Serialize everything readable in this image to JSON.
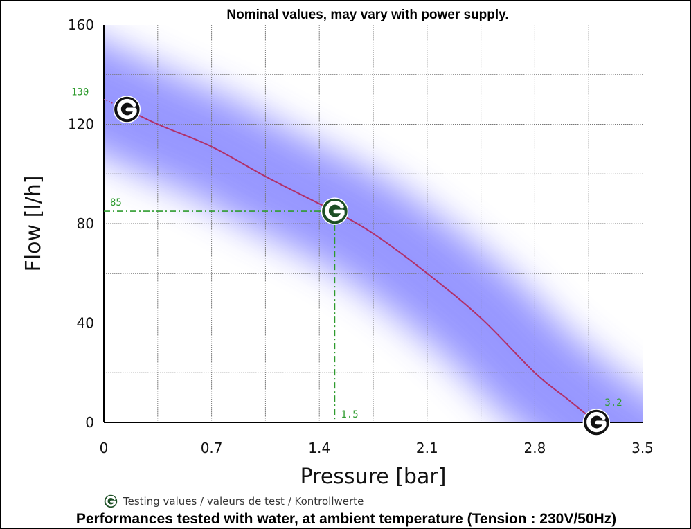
{
  "chart_data": {
    "type": "line",
    "title": "Nominal values, may vary with power supply.",
    "footnote": "Performances tested with water, at ambient temperature (Tension : 230V/50Hz)",
    "xlabel": "Pressure [bar]",
    "ylabel": "Flow [l/h]",
    "xlim": [
      0,
      3.5
    ],
    "ylim": [
      0,
      160
    ],
    "xticks": [
      "0",
      "0.7",
      "1.4",
      "2.1",
      "2.8",
      "3.5"
    ],
    "yticks": [
      "0",
      "40",
      "80",
      "120",
      "160"
    ],
    "grid": true,
    "legend": "bottom-left",
    "legend_label": "Testing values / valeurs de test / Kontrollwerte",
    "series": [
      {
        "x": [
          0,
          0.15,
          0.35,
          0.7,
          1.05,
          1.4,
          1.5,
          1.75,
          2.1,
          2.45,
          2.8,
          3.0,
          3.2
        ],
        "y": [
          130,
          126,
          120,
          111,
          99,
          88,
          85,
          76,
          60,
          42,
          20,
          10,
          0
        ]
      }
    ],
    "markers": [
      {
        "x": 0.15,
        "y": 126
      },
      {
        "x": 1.5,
        "y": 85
      },
      {
        "x": 3.2,
        "y": 0
      }
    ],
    "annotations": [
      {
        "text": "130",
        "x": 0,
        "y": 130
      },
      {
        "text": "85",
        "x": 0,
        "y": 85
      },
      {
        "text": "1.5",
        "x": 1.5,
        "y": 0
      },
      {
        "text": "3.2",
        "x": 3.2,
        "y": 0
      }
    ],
    "colors": {
      "curve": "#b0306a",
      "band": "#8c8cff",
      "annotation": "#2e9b2e",
      "marker_tested": "#1d4f25",
      "marker": "#111111"
    }
  }
}
